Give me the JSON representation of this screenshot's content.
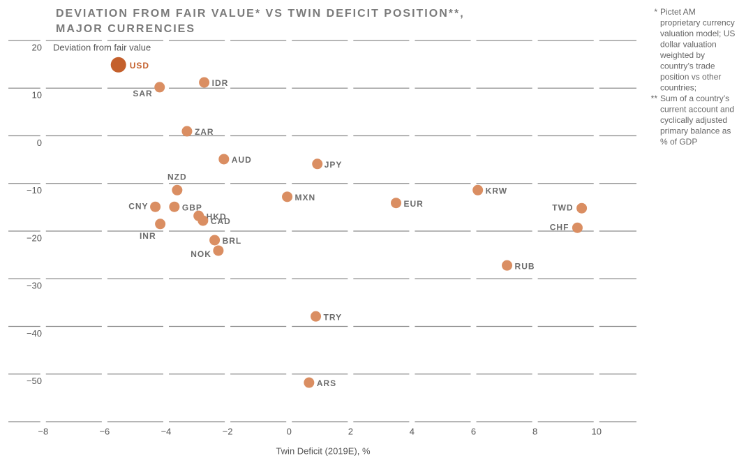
{
  "chart_data": {
    "type": "scatter",
    "title": [
      "DEVIATION FROM FAIR VALUE* VS TWIN DEFICIT POSITION**,",
      "MAJOR CURRENCIES"
    ],
    "y_label": "Deviation from fair value",
    "x_label": "Twin Deficit (2019E), %",
    "footnotes": [
      {
        "mark": "*",
        "lines": [
          "Pictet AM",
          "proprietary currency",
          "valuation model; US",
          "dollar valuation",
          "weighted by",
          "country’s trade",
          "position vs other",
          "countries;"
        ]
      },
      {
        "mark": "**",
        "lines": [
          "Sum of a country’s",
          "current account and",
          "cyclically adjusted",
          "primary balance as",
          "% of GDP"
        ]
      }
    ],
    "xlim": [
      -9.13,
      11.3
    ],
    "ylim": [
      -60,
      20
    ],
    "xticks": [
      {
        "value": -8,
        "label": "−8"
      },
      {
        "value": -6,
        "label": "−6"
      },
      {
        "value": -4,
        "label": "−4"
      },
      {
        "value": -2,
        "label": "−2"
      },
      0,
      2,
      4,
      6,
      8,
      10
    ],
    "yticks": [
      20,
      10,
      0,
      {
        "value": -10,
        "label": "−10"
      },
      {
        "value": -20,
        "label": "−20"
      },
      {
        "value": -30,
        "label": "−30"
      },
      {
        "value": -40,
        "label": "−40"
      },
      {
        "value": -50,
        "label": "−50"
      },
      {
        "value": -60,
        "label": ""
      }
    ],
    "grid": true,
    "color": "#da8e62",
    "highlight_color": "#c4602c",
    "highlight": "USD",
    "labels": [
      "USD",
      "SAR",
      "IDR",
      "ZAR",
      "AUD",
      "JPY",
      "NZD",
      "MXN",
      "EUR",
      "KRW",
      "TWD",
      "CHF",
      "CNY",
      "GBP",
      "HKD",
      "CAD",
      "INR",
      "BRL",
      "NOK",
      "RUB",
      "TRY",
      "ARS"
    ],
    "x": [
      -5.55,
      -4.21,
      -2.76,
      -3.32,
      -2.12,
      0.92,
      -3.64,
      -0.06,
      3.48,
      6.14,
      9.52,
      9.38,
      -4.35,
      -3.73,
      -2.94,
      -2.8,
      -4.19,
      -2.42,
      -2.3,
      7.09,
      0.87,
      0.65
    ],
    "values": [
      14.9,
      10.2,
      11.2,
      0.95,
      -4.9,
      -5.9,
      -11.4,
      -12.8,
      -14.1,
      -11.4,
      -15.2,
      -19.3,
      -14.9,
      -14.9,
      -16.8,
      -17.8,
      -18.5,
      -21.9,
      -24.1,
      -27.2,
      -37.9,
      -51.8
    ]
  }
}
